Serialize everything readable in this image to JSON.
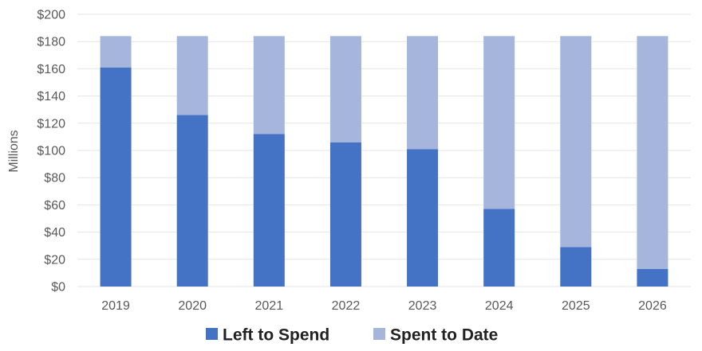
{
  "chart_data": {
    "type": "bar",
    "stacked": true,
    "categories": [
      "2019",
      "2020",
      "2021",
      "2022",
      "2023",
      "2024",
      "2025",
      "2026"
    ],
    "series": [
      {
        "name": "Left to Spend",
        "color": "#4472C4",
        "values": [
          161,
          126,
          112,
          106,
          101,
          57,
          29,
          13
        ]
      },
      {
        "name": "Spent to Date",
        "color": "#A5B5DB",
        "values": [
          23,
          58,
          72,
          78,
          83,
          127,
          155,
          171
        ]
      }
    ],
    "ylabel": "Millions",
    "ylim": [
      0,
      200
    ],
    "yticks": [
      "$0",
      "$20",
      "$40",
      "$60",
      "$80",
      "$100",
      "$120",
      "$140",
      "$160",
      "$180",
      "$200"
    ],
    "ytick_values": [
      0,
      20,
      40,
      60,
      80,
      100,
      120,
      140,
      160,
      180,
      200
    ],
    "grid": true,
    "legend_position": "bottom",
    "gridline_color": "#E6E6E6"
  }
}
